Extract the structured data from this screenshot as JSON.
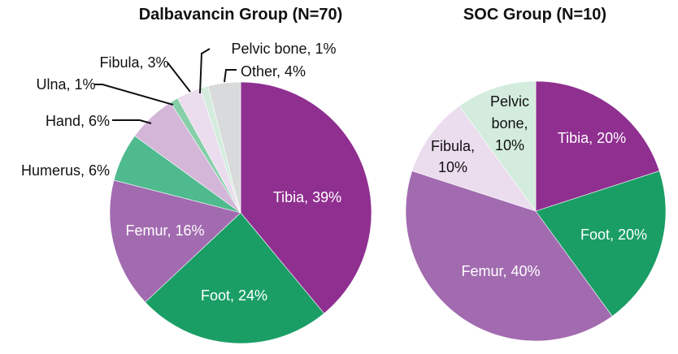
{
  "chart_data": [
    {
      "type": "pie",
      "title": "Dalbavancin Group (N=70)",
      "slices": [
        {
          "label": "Tibia, 39%",
          "value": 39,
          "color": "#8f2f90"
        },
        {
          "label": "Foot, 24%",
          "value": 24,
          "color": "#1a9e66"
        },
        {
          "label": "Femur, 16%",
          "value": 16,
          "color": "#a26bb0"
        },
        {
          "label": "Humerus, 6%",
          "value": 6,
          "color": "#4fba8e"
        },
        {
          "label": "Hand, 6%",
          "value": 6,
          "color": "#d4b6d9"
        },
        {
          "label": "Ulna, 1%",
          "value": 1,
          "color": "#86cfa9"
        },
        {
          "label": "Fibula, 3%",
          "value": 3,
          "color": "#ebdcee"
        },
        {
          "label": "Pelvic bone, 1%",
          "value": 1,
          "color": "#d3ecdd"
        },
        {
          "label": "Other, 4%",
          "value": 4,
          "color": "#d8dadb"
        }
      ]
    },
    {
      "type": "pie",
      "title": "SOC Group (N=10)",
      "slices": [
        {
          "label": "Tibia, 20%",
          "value": 20,
          "color": "#8f2f90"
        },
        {
          "label": "Foot, 20%",
          "value": 20,
          "color": "#1a9e66"
        },
        {
          "label": "Femur, 40%",
          "value": 40,
          "color": "#a26bb0"
        },
        {
          "label": "Fibula, 10%",
          "value": 10,
          "color": "#ebdcee"
        },
        {
          "label": "Pelvic bone, 10%",
          "value": 10,
          "color": "#d3ecdd"
        }
      ]
    }
  ]
}
